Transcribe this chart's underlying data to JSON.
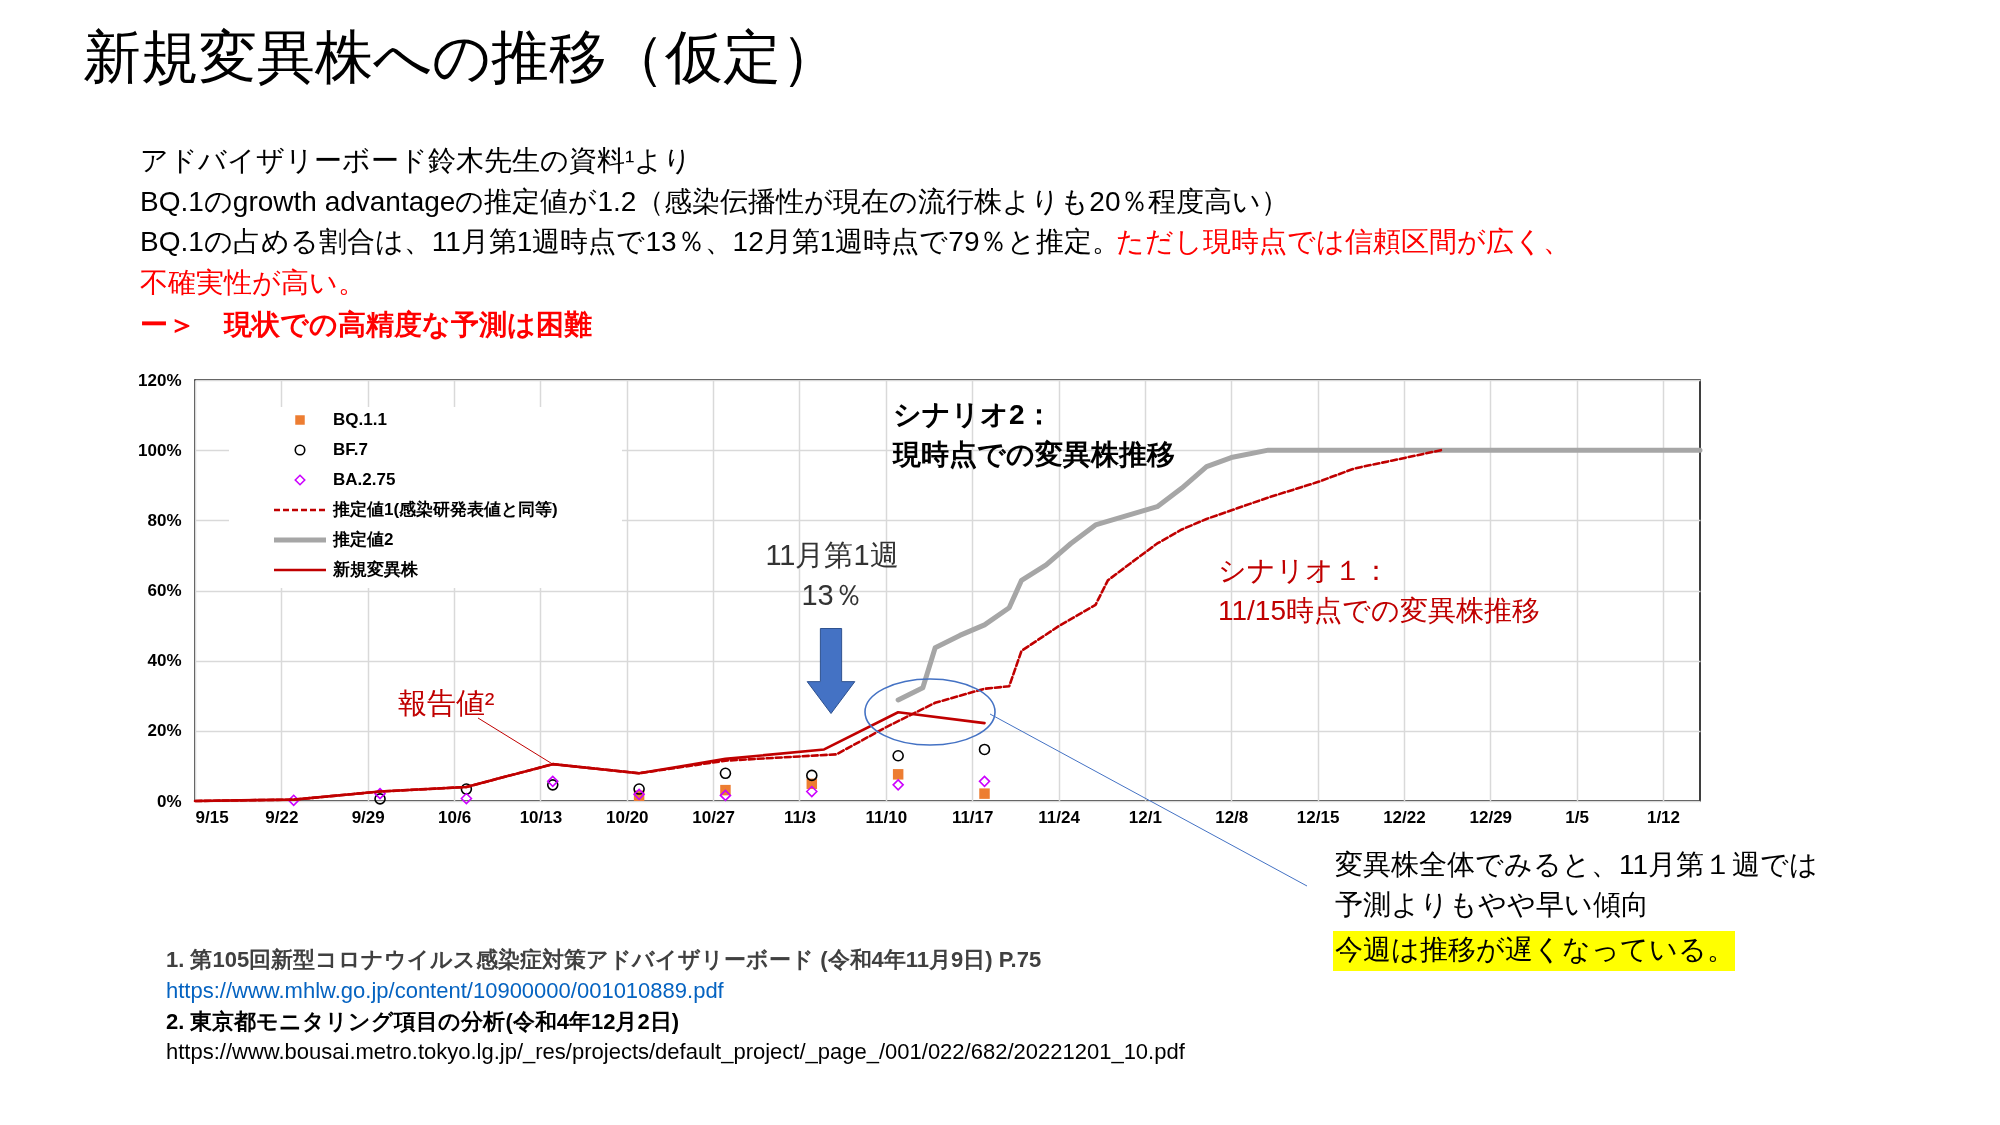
{
  "chart_data": {
    "type": "line",
    "title": "新規変異株への推移（仮定）",
    "subtitle": "アドバイザリーボード鈴木先生の資料¹より\nBQ.1のgrowth advantageの推定値が1.2（感染伝播性が現在の流行株よりも20％程度高い）\nBQ.1の占める割合は、11月第1週時点で13％、12月第1週時点で79％と推定。",
    "xlim": [
      "2022-09-15",
      "2023-01-15"
    ],
    "xticks": [
      {
        "value": "2022-09-15",
        "label": "9/15"
      },
      {
        "value": "2022-09-22",
        "label": "9/22"
      },
      {
        "value": "2022-09-29",
        "label": "9/29"
      },
      {
        "value": "2022-10-06",
        "label": "10/6"
      },
      {
        "value": "2022-10-13",
        "label": "10/13"
      },
      {
        "value": "2022-10-20",
        "label": "10/20"
      },
      {
        "value": "2022-10-27",
        "label": "10/27"
      },
      {
        "value": "2022-11-03",
        "label": "11/3"
      },
      {
        "value": "2022-11-10",
        "label": "11/10"
      },
      {
        "value": "2022-11-17",
        "label": "11/17"
      },
      {
        "value": "2022-11-24",
        "label": "11/24"
      },
      {
        "value": "2022-12-01",
        "label": "12/1"
      },
      {
        "value": "2022-12-08",
        "label": "12/8"
      },
      {
        "value": "2022-12-15",
        "label": "12/15"
      },
      {
        "value": "2022-12-22",
        "label": "12/22"
      },
      {
        "value": "2022-12-29",
        "label": "12/29"
      },
      {
        "value": "2023-01-05",
        "label": "1/5"
      },
      {
        "value": "2023-01-12",
        "label": "1/12"
      }
    ],
    "ylim": [
      0,
      120
    ],
    "yticks": [
      {
        "value": 0,
        "label": "0%"
      },
      {
        "value": 20,
        "label": "20%"
      },
      {
        "value": 40,
        "label": "40%"
      },
      {
        "value": 60,
        "label": "60%"
      },
      {
        "value": 80,
        "label": "80%"
      },
      {
        "value": 100,
        "label": "100%"
      },
      {
        "value": 120,
        "label": "120%"
      }
    ],
    "grid": true,
    "legend": "top left",
    "series": [
      {
        "name": "BQ.1.1",
        "type": "scatter",
        "marker": "square",
        "color": "#ed7d31",
        "x": [
          "2022-10-21",
          "2022-10-28",
          "2022-11-04",
          "2022-11-11",
          "2022-11-18"
        ],
        "values": [
          1.5,
          3.1,
          4.9,
          7.6,
          2.1
        ]
      },
      {
        "name": "BF.7",
        "type": "scatter",
        "marker": "circle",
        "color": "#000000",
        "x": [
          "2022-09-30",
          "2022-10-07",
          "2022-10-14",
          "2022-10-21",
          "2022-10-28",
          "2022-11-04",
          "2022-11-11",
          "2022-11-18"
        ],
        "values": [
          0.6,
          3.4,
          4.6,
          3.4,
          7.9,
          7.3,
          12.9,
          14.7
        ]
      },
      {
        "name": "BA.2.75",
        "type": "scatter",
        "marker": "diamond",
        "color": "#cc00ff",
        "x": [
          "2022-09-23",
          "2022-09-30",
          "2022-10-07",
          "2022-10-14",
          "2022-10-21",
          "2022-10-28",
          "2022-11-04",
          "2022-11-11",
          "2022-11-18"
        ],
        "values": [
          0.2,
          2.1,
          0.7,
          5.6,
          1.9,
          1.6,
          2.7,
          4.6,
          5.6
        ]
      },
      {
        "name": "推定値1(感染研発表値と同等)",
        "line_style": "dashed",
        "color": "#c00000",
        "x": [
          "2022-09-15",
          "2022-09-23",
          "2022-09-30",
          "2022-10-07",
          "2022-10-14",
          "2022-10-21",
          "2022-10-28",
          "2022-11-06",
          "2022-11-10",
          "2022-11-14",
          "2022-11-18",
          "2022-11-20",
          "2022-11-21",
          "2022-11-24",
          "2022-11-27",
          "2022-11-28",
          "2022-11-30",
          "2022-12-02",
          "2022-12-04",
          "2022-12-06",
          "2022-12-11",
          "2022-12-15",
          "2022-12-18",
          "2022-12-21",
          "2022-12-25"
        ],
        "values": [
          0,
          0.4,
          2.7,
          4.0,
          10.5,
          7.9,
          11.5,
          13.3,
          21.0,
          28.0,
          32.0,
          32.7,
          42.8,
          49.8,
          55.9,
          62.9,
          68.2,
          73.4,
          77.4,
          80.4,
          86.5,
          90.9,
          94.8,
          97.0,
          100
        ]
      },
      {
        "name": "推定値2",
        "line_style": "solid",
        "color": "#a6a6a6",
        "x": [
          "2022-11-11",
          "2022-11-13",
          "2022-11-14",
          "2022-11-16",
          "2022-11-18",
          "2022-11-20",
          "2022-11-21",
          "2022-11-23",
          "2022-11-25",
          "2022-11-27",
          "2022-12-02",
          "2022-12-04",
          "2022-12-06",
          "2022-12-08",
          "2022-12-11",
          "2023-01-15"
        ],
        "values": [
          28.8,
          32.3,
          43.7,
          47.2,
          50.2,
          55.1,
          62.9,
          67.3,
          73.4,
          78.7,
          83.9,
          89.2,
          95.3,
          97.9,
          100,
          100
        ]
      },
      {
        "name": "新規変異株",
        "line_style": "solid",
        "color": "#c00000",
        "x": [
          "2022-09-15",
          "2022-09-23",
          "2022-09-30",
          "2022-10-07",
          "2022-10-14",
          "2022-10-21",
          "2022-10-28",
          "2022-11-05",
          "2022-11-11",
          "2022-11-18"
        ],
        "values": [
          0,
          0.4,
          2.7,
          4.0,
          10.5,
          7.9,
          12.0,
          14.7,
          25.3,
          22.2
        ]
      }
    ],
    "annotations": [
      "ただし現時点では信頼区間が広く、",
      "不確実性が高い。",
      "ー＞　現状での高精度な予測は困難",
      "シナリオ2：現時点での変異株推移",
      "11月第1週13％",
      {
        "text": "報告値²",
        "x": "2022-10-14",
        "y": 10.5
      },
      "シナリオ１：11/15時点での変異株推移",
      "変異株全体でみると、11月第１週では予測よりもやや早い傾向",
      "今週は推移が遅くなっている。",
      "1. 第105回新型コロナウイルス感染症対策アドバイザリーボード (令和4年11月9日) P.75",
      "https://www.mhlw.go.jp/content/10900000/001010889.pdf",
      "2. 東京都モニタリング項目の分析(令和4年12月2日)",
      "https://www.bousai.metro.tokyo.lg.jp/_res/projects/default_project/_page_/001/022/682/20221201_10.pdf"
    ]
  }
}
